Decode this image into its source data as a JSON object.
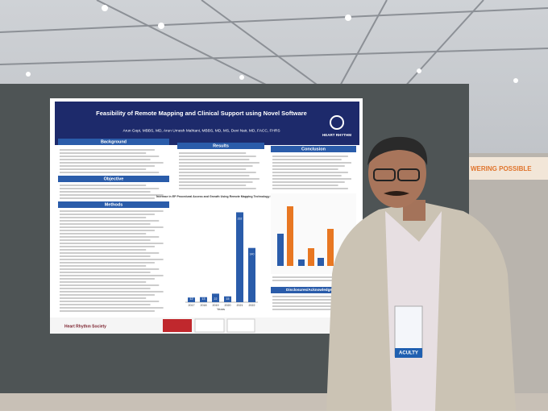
{
  "poster": {
    "title": "Feasibility of Remote Mapping and Clinical Support using Novel Software",
    "authors": "Arun Gopi, MBBS, MD, Arun Umesh Mahtani, MBBS, MD, MS, Devi Nair, MD, FACC, FHRS",
    "logo": "HEART RHYTHM",
    "sections": {
      "background": "Background",
      "objective": "Objective",
      "methods": "Methods",
      "results": "Results",
      "conclusion": "Conclusion",
      "disclosures": "Disclosures/Acknowledgement"
    },
    "footer_logo": "Heart Rhythm Society",
    "chart": {
      "type": "bar",
      "title": "Increase in EP Procedural Access and Growth Using Remote Mapping Technology Since 2017",
      "x_label": "Years",
      "categories": [
        "2017",
        "2018",
        "2019",
        "2020",
        "2021",
        "2022"
      ],
      "values": [
        12,
        13,
        22,
        15,
        232,
        140
      ],
      "color": "#2a5caa",
      "ylim": [
        0,
        260
      ]
    }
  },
  "banner": "WERING POSSIBLE",
  "badge": "ACULTY"
}
